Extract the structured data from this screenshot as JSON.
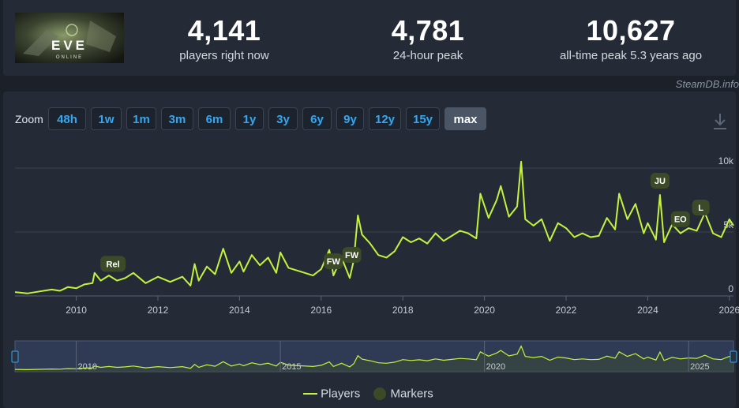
{
  "header": {
    "logo": {
      "title": "EVE",
      "subtitle": "ONLINE"
    },
    "stats": [
      {
        "value": "4,141",
        "label": "players right now"
      },
      {
        "value": "4,781",
        "label": "24-hour peak"
      },
      {
        "value": "10,627",
        "label": "all-time peak 5.3 years ago"
      }
    ],
    "credit": "SteamDB.info"
  },
  "zoom": {
    "label": "Zoom",
    "buttons": [
      "48h",
      "1w",
      "1m",
      "3m",
      "6m",
      "1y",
      "3y",
      "6y",
      "9y",
      "12y",
      "15y",
      "max"
    ],
    "active": "max"
  },
  "colors": {
    "series": "#c3f33d",
    "marker": "#3c4a28",
    "accent": "#34a7f2"
  },
  "chart_data": {
    "type": "line",
    "title": "",
    "xlabel": "",
    "ylabel": "",
    "xlim": [
      2008.5,
      2026.1
    ],
    "ylim": [
      0,
      10000
    ],
    "x_ticks": [
      "2010",
      "2012",
      "2014",
      "2016",
      "2018",
      "2020",
      "2022",
      "2024",
      "2026"
    ],
    "y_ticks": [
      "0",
      "5k",
      "10k"
    ],
    "grid": true,
    "legend": "bottom-center",
    "series": [
      {
        "name": "Players",
        "x": [
          2008.5,
          2008.8,
          2009.1,
          2009.4,
          2009.6,
          2009.8,
          2010.0,
          2010.2,
          2010.4,
          2010.45,
          2010.6,
          2010.8,
          2011.0,
          2011.2,
          2011.4,
          2011.7,
          2012.0,
          2012.3,
          2012.6,
          2012.8,
          2012.9,
          2013.0,
          2013.2,
          2013.4,
          2013.6,
          2013.8,
          2014.0,
          2014.1,
          2014.3,
          2014.5,
          2014.7,
          2014.9,
          2015.0,
          2015.2,
          2015.5,
          2015.8,
          2016.0,
          2016.2,
          2016.3,
          2016.5,
          2016.7,
          2016.8,
          2016.9,
          2017.0,
          2017.2,
          2017.4,
          2017.6,
          2017.8,
          2018.0,
          2018.2,
          2018.4,
          2018.6,
          2018.8,
          2019.0,
          2019.2,
          2019.4,
          2019.6,
          2019.8,
          2019.9,
          2020.1,
          2020.3,
          2020.4,
          2020.6,
          2020.8,
          2020.9,
          2021.0,
          2021.2,
          2021.4,
          2021.6,
          2021.8,
          2022.0,
          2022.2,
          2022.4,
          2022.6,
          2022.8,
          2023.0,
          2023.2,
          2023.3,
          2023.5,
          2023.7,
          2023.9,
          2024.0,
          2024.2,
          2024.3,
          2024.4,
          2024.6,
          2024.8,
          2025.0,
          2025.2,
          2025.4,
          2025.6,
          2025.8,
          2026.0,
          2026.1
        ],
        "values": [
          300,
          200,
          350,
          500,
          400,
          700,
          600,
          900,
          1000,
          1800,
          1200,
          1600,
          1200,
          1400,
          1800,
          1000,
          1500,
          1100,
          1500,
          800,
          2500,
          1200,
          2300,
          1700,
          3700,
          1800,
          2700,
          1900,
          3200,
          2400,
          3000,
          1800,
          3400,
          2200,
          1900,
          1600,
          2100,
          3600,
          1600,
          3000,
          1400,
          2800,
          6300,
          4800,
          4100,
          3200,
          3000,
          3500,
          4600,
          4200,
          4500,
          4100,
          4900,
          4300,
          4700,
          5100,
          4900,
          4500,
          8000,
          6100,
          7500,
          8600,
          6200,
          7000,
          10500,
          6000,
          5500,
          6000,
          4300,
          5700,
          5300,
          4600,
          4900,
          4600,
          4700,
          6100,
          5200,
          8000,
          6000,
          7200,
          4900,
          5700,
          4400,
          7900,
          4200,
          5600,
          4900,
          5300,
          5100,
          6500,
          4900,
          4600,
          6000,
          5500
        ]
      }
    ],
    "markers": [
      {
        "label": "Rel",
        "x": 2010.9
      },
      {
        "label": "FW",
        "x": 2016.3
      },
      {
        "label": "FW",
        "x": 2016.75
      },
      {
        "label": "JU",
        "x": 2024.3
      },
      {
        "label": "EO",
        "x": 2024.8
      },
      {
        "label": "L",
        "x": 2025.3
      }
    ],
    "navigator": {
      "ticks": [
        "2010",
        "2015",
        "2020",
        "2025"
      ]
    }
  },
  "legend": {
    "series_label": "Players",
    "markers_label": "Markers"
  }
}
